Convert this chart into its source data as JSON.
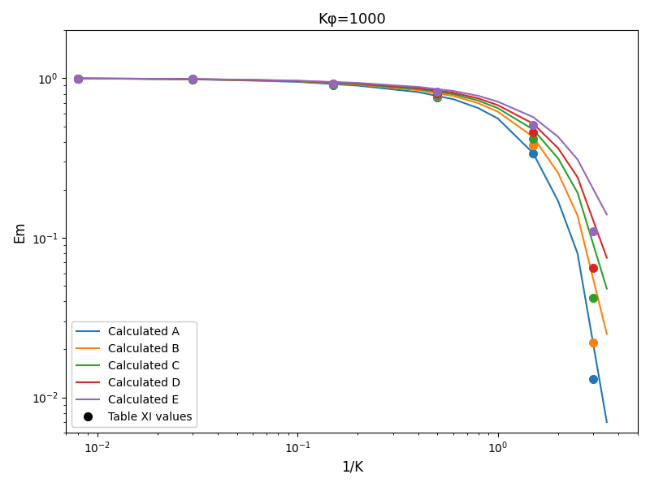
{
  "title": "Kφ=1000",
  "xlabel": "1/K",
  "ylabel": "Em",
  "series": [
    {
      "label": "Calculated A",
      "color": "#1f77b4",
      "line_x": [
        0.008,
        0.015,
        0.03,
        0.06,
        0.1,
        0.2,
        0.4,
        0.6,
        0.8,
        1.0,
        1.5,
        2.0,
        2.5,
        3.5
      ],
      "line_y": [
        0.997,
        0.993,
        0.985,
        0.968,
        0.95,
        0.9,
        0.82,
        0.74,
        0.65,
        0.56,
        0.34,
        0.17,
        0.08,
        0.007
      ],
      "dot_x": [
        0.008,
        0.03,
        0.15,
        0.5,
        1.5,
        3.0
      ],
      "dot_y": [
        0.997,
        0.985,
        0.91,
        0.76,
        0.34,
        0.013
      ]
    },
    {
      "label": "Calculated B",
      "color": "#ff7f0e",
      "line_x": [
        0.008,
        0.015,
        0.03,
        0.06,
        0.1,
        0.2,
        0.4,
        0.6,
        0.8,
        1.0,
        1.5,
        2.0,
        2.5,
        3.5
      ],
      "line_y": [
        0.997,
        0.994,
        0.987,
        0.972,
        0.957,
        0.913,
        0.843,
        0.775,
        0.698,
        0.618,
        0.43,
        0.255,
        0.138,
        0.025
      ],
      "dot_x": [
        0.008,
        0.03,
        0.15,
        0.5,
        1.5,
        3.0
      ],
      "dot_y": [
        0.997,
        0.987,
        0.916,
        0.775,
        0.38,
        0.022
      ]
    },
    {
      "label": "Calculated C",
      "color": "#2ca02c",
      "line_x": [
        0.008,
        0.015,
        0.03,
        0.06,
        0.1,
        0.2,
        0.4,
        0.6,
        0.8,
        1.0,
        1.5,
        2.0,
        2.5,
        3.5
      ],
      "line_y": [
        0.997,
        0.994,
        0.988,
        0.974,
        0.96,
        0.92,
        0.856,
        0.795,
        0.725,
        0.65,
        0.478,
        0.315,
        0.192,
        0.048
      ],
      "dot_x": [
        0.008,
        0.03,
        0.15,
        0.5,
        1.5,
        3.0
      ],
      "dot_y": [
        0.997,
        0.988,
        0.921,
        0.79,
        0.42,
        0.042
      ]
    },
    {
      "label": "Calculated D",
      "color": "#d62728",
      "line_x": [
        0.008,
        0.015,
        0.03,
        0.06,
        0.1,
        0.2,
        0.4,
        0.6,
        0.8,
        1.0,
        1.5,
        2.0,
        2.5,
        3.5
      ],
      "line_y": [
        0.997,
        0.994,
        0.989,
        0.976,
        0.963,
        0.928,
        0.869,
        0.812,
        0.748,
        0.679,
        0.52,
        0.365,
        0.24,
        0.075
      ],
      "dot_x": [
        0.008,
        0.03,
        0.15,
        0.5,
        1.5,
        3.0
      ],
      "dot_y": [
        0.997,
        0.989,
        0.926,
        0.805,
        0.46,
        0.065
      ]
    },
    {
      "label": "Calculated E",
      "color": "#9467bd",
      "line_x": [
        0.008,
        0.015,
        0.03,
        0.06,
        0.1,
        0.2,
        0.4,
        0.6,
        0.8,
        1.0,
        1.5,
        2.0,
        2.5,
        3.5
      ],
      "line_y": [
        0.997,
        0.995,
        0.99,
        0.979,
        0.967,
        0.936,
        0.883,
        0.833,
        0.776,
        0.714,
        0.572,
        0.43,
        0.31,
        0.14
      ],
      "dot_x": [
        0.008,
        0.03,
        0.15,
        0.5,
        1.5,
        3.0
      ],
      "dot_y": [
        0.997,
        0.99,
        0.932,
        0.825,
        0.51,
        0.11
      ]
    }
  ],
  "xlim": [
    0.007,
    5.0
  ],
  "ylim": [
    0.006,
    2.0
  ]
}
